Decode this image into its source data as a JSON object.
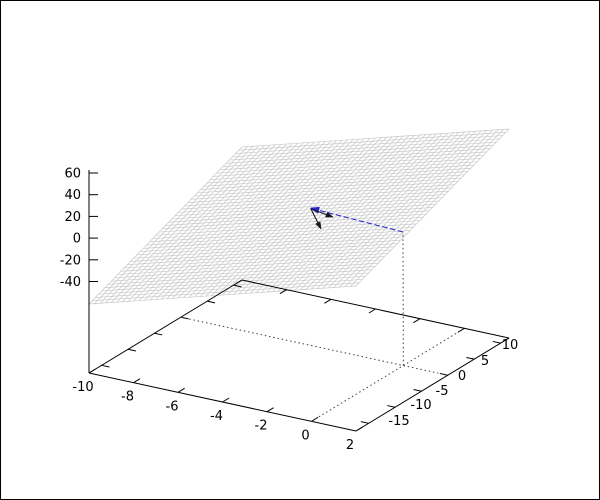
{
  "frame": {
    "background": "#ffffff",
    "border_color": "#000000"
  },
  "chart_data": {
    "type": "surface",
    "title": "",
    "xlabel": "",
    "ylabel": "",
    "zlabel": "",
    "grid": "off",
    "legend": "none",
    "x_axis": {
      "tick_labels": [
        "-10",
        "-8",
        "-6",
        "-4",
        "-2",
        "0",
        "2"
      ],
      "tick_values": [
        -10,
        -8,
        -6,
        -4,
        -2,
        0,
        2
      ],
      "range": [
        -10,
        2
      ]
    },
    "y_axis": {
      "tick_labels": [
        "-15",
        "-10",
        "-5",
        "0",
        "5",
        "10"
      ],
      "tick_values": [
        -15,
        -10,
        -5,
        0,
        5,
        10
      ],
      "range": [
        -17.4,
        11.6
      ]
    },
    "z_axis": {
      "tick_labels": [
        "-40",
        "-20",
        "0",
        "20",
        "40",
        "60"
      ],
      "tick_values": [
        -40,
        -20,
        0,
        20,
        40,
        60
      ],
      "range_shown": [
        -50,
        63
      ]
    },
    "surface": {
      "kind": "plane-mesh",
      "description": "flat plane drawn as fine light-gray wireframe mesh over full x/y domain",
      "plane_equation_estimate": "z = 5.8x + 2.0y + 33",
      "corner_z_estimates": {
        "x-10_ymin": -60,
        "x2_ymin": 10,
        "x2_ymax": 69,
        "x-10_ymax": -1
      }
    },
    "annotations": {
      "blue_vector": {
        "style": "dashed blue arrow, head at far end",
        "from_xyz_estimate": [
          0,
          0,
          0
        ],
        "to_xyz_estimate": [
          -4,
          0,
          8
        ]
      },
      "black_vectors": [
        {
          "style": "short black arrow from blue arrow tip",
          "direction_estimate": "+x"
        },
        {
          "style": "short black arrow from blue arrow tip",
          "direction_estimate": "-z (downward)"
        }
      ],
      "projection": {
        "point_xy": [
          0,
          0
        ],
        "lines": [
          "vertical dotted riser from base plane up to z≈0",
          "dotted base line along y=0 across full x range",
          "dotted base line along x=0 across full y range"
        ]
      }
    },
    "colors": {
      "surface_mesh": "#c9c9c9",
      "axis": "#000000",
      "dotted_projection": "#404040",
      "vector_blue": "#2424cc",
      "vector_black": "#1a1a1a"
    }
  }
}
